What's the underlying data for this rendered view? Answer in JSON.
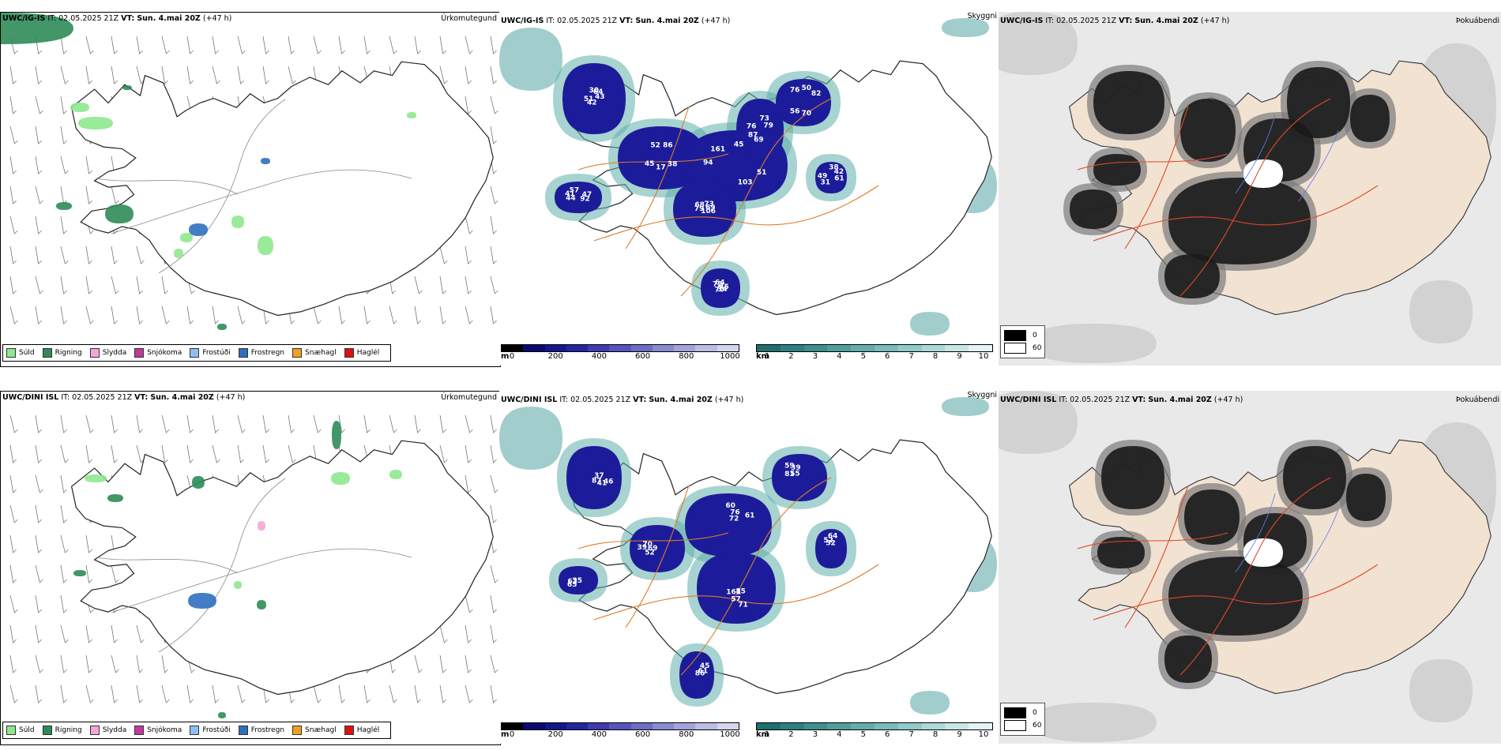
{
  "rows": [
    {
      "model": "UWC/IG-IS",
      "it_label": "IT:",
      "it_value": "02.05.2025 21Z",
      "vt_label": "VT:",
      "vt_value": "Sun. 4.mai 20Z",
      "lead": "(+47 h)",
      "cloud_labels": [
        "43",
        "45",
        "45",
        "106",
        "76",
        "82",
        "70",
        "57",
        "61",
        "51",
        "86",
        "103",
        "68",
        "79",
        "56",
        "64",
        "92",
        "49",
        "64",
        "17",
        "161",
        "69",
        "87",
        "50",
        "34",
        "41",
        "42",
        "42",
        "52",
        "51",
        "79",
        "73",
        "70",
        "72",
        "47",
        "31",
        "30",
        "38",
        "94",
        "73",
        "69",
        "76",
        "45",
        "44",
        "38"
      ]
    },
    {
      "model": "UWC/DINI ISL",
      "it_label": "IT:",
      "it_value": "02.05.2025 21Z",
      "vt_label": "VT:",
      "vt_value": "Sun. 4.mai 20Z",
      "lead": "(+47 h)",
      "cloud_labels": [
        "37",
        "52",
        "60",
        "85",
        "81",
        "45",
        "35",
        "52",
        "46",
        "69",
        "76",
        "71",
        "55",
        "61",
        "65",
        "52",
        "41",
        "39",
        "72",
        "57",
        "59",
        "86",
        "62",
        "64",
        "87",
        "70",
        "61",
        "161",
        "39"
      ]
    }
  ],
  "panel_titles": {
    "precip": "Úrkomutegund",
    "cloud": "Skyggni",
    "fog": "Þokuábendi"
  },
  "precip_legend": [
    {
      "label": "Súld",
      "color": "#8ee88e"
    },
    {
      "label": "Rigning",
      "color": "#2e8b57"
    },
    {
      "label": "Slydda",
      "color": "#f4a6d7"
    },
    {
      "label": "Snjókoma",
      "color": "#c0399f"
    },
    {
      "label": "Frostúði",
      "color": "#8fbff0"
    },
    {
      "label": "Frostregn",
      "color": "#2f6fbf"
    },
    {
      "label": "Snæhagl",
      "color": "#f0a020"
    },
    {
      "label": "Haglél",
      "color": "#e01010"
    }
  ],
  "cloudbase_bar": {
    "unit": "m",
    "ticks": [
      "0",
      "200",
      "400",
      "600",
      "800",
      "1000"
    ],
    "colors": [
      "#000000",
      "#0a0a6e",
      "#16168c",
      "#2525a0",
      "#3c3cb0",
      "#5555bb",
      "#6d6dc4",
      "#8a8ad0",
      "#a3a3dc",
      "#bcbce6",
      "#d5d5f0"
    ]
  },
  "visibility_bar": {
    "unit": "km",
    "ticks": [
      "1",
      "2",
      "3",
      "4",
      "5",
      "6",
      "7",
      "8",
      "9",
      "10"
    ],
    "colors": [
      "#1f6f6f",
      "#2e8080",
      "#3f8f8f",
      "#519e9e",
      "#64adad",
      "#7abbbb",
      "#92caca",
      "#add8d8",
      "#c8e6e6",
      "#e4f3f3"
    ]
  },
  "fog_legend": [
    {
      "label": "0",
      "color": "#000000"
    },
    {
      "label": "60",
      "color": "#ffffff"
    }
  ]
}
